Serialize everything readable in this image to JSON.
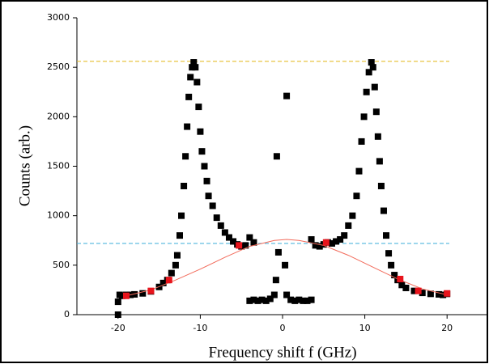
{
  "chart_data": {
    "type": "scatter",
    "xlabel": "Frequency shift f  (GHz)",
    "ylabel": "Counts (arb.)",
    "xlim": [
      -25,
      25
    ],
    "ylim": [
      0,
      3000
    ],
    "xticks": [
      -20,
      -10,
      0,
      10,
      20
    ],
    "yticks": [
      0,
      500,
      1000,
      1500,
      2000,
      2500,
      3000
    ],
    "hlines": [
      {
        "value": 2560,
        "color": "#e6bf2e"
      },
      {
        "value": 720,
        "color": "#4fb6dc"
      }
    ],
    "series": [
      {
        "style": "markers",
        "color": "#000000",
        "x": [
          -20,
          -20,
          -19.8,
          -19.5,
          -19,
          -18.5,
          -18,
          -17,
          -16,
          -15,
          -14.5,
          -14,
          -13.5,
          -13,
          -12.8,
          -12.5,
          -12.3,
          -12,
          -11.8,
          -11.6,
          -11.4,
          -11.2,
          -11,
          -10.8,
          -10.6,
          -10.4,
          -10.2,
          -10,
          -9.8,
          -9.5,
          -9.2,
          -9,
          -8.5,
          -8,
          -7.5,
          -7,
          -6.5,
          -6,
          -5.5,
          -5,
          -4.5,
          -4,
          -3.5,
          -4,
          -3.5,
          -3,
          -2.5,
          -2,
          -1.5,
          -1,
          -0.8,
          -0.5,
          -0.7,
          0.5,
          0.3,
          0.5,
          1,
          1.5,
          2,
          2.5,
          3,
          3.5,
          3.5,
          4,
          4.5,
          5,
          5.5,
          6,
          6.5,
          7,
          7.5,
          8,
          8.5,
          9,
          9.3,
          9.6,
          9.9,
          10.2,
          10.5,
          10.8,
          11,
          11.2,
          11.4,
          11.6,
          11.8,
          12,
          12.3,
          12.6,
          12.9,
          13.2,
          13.6,
          14,
          14.5,
          15,
          16,
          17,
          18,
          19,
          19.5,
          20
        ],
        "values": [
          0,
          130,
          200,
          190,
          200,
          200,
          205,
          215,
          235,
          280,
          320,
          350,
          420,
          500,
          600,
          800,
          1000,
          1300,
          1600,
          1900,
          2200,
          2400,
          2500,
          2550,
          2500,
          2350,
          2100,
          1850,
          1650,
          1500,
          1350,
          1200,
          1100,
          980,
          900,
          830,
          780,
          740,
          710,
          690,
          700,
          780,
          730,
          140,
          150,
          140,
          150,
          140,
          160,
          200,
          350,
          630,
          1600,
          2210,
          500,
          200,
          150,
          140,
          150,
          140,
          140,
          150,
          760,
          700,
          690,
          710,
          730,
          720,
          740,
          760,
          800,
          900,
          1000,
          1200,
          1450,
          1750,
          2000,
          2250,
          2450,
          2550,
          2500,
          2300,
          2050,
          1800,
          1550,
          1300,
          1050,
          800,
          620,
          500,
          400,
          350,
          300,
          270,
          240,
          220,
          210,
          205,
          200,
          210
        ]
      },
      {
        "style": "line",
        "color": "#f26b5b",
        "x": [
          -19,
          -16,
          -13,
          -10,
          -7,
          -4,
          -1,
          0.5,
          2,
          5,
          8,
          11,
          14,
          17,
          20
        ],
        "values": [
          190,
          250,
          350,
          460,
          580,
          690,
          750,
          760,
          750,
          700,
          600,
          480,
          360,
          260,
          200
        ]
      },
      {
        "style": "markers",
        "color": "#e8141c",
        "x": [
          -19,
          -16,
          -13.8,
          -5.3,
          5.3,
          14.3,
          16.5,
          20
        ],
        "values": [
          190,
          240,
          350,
          700,
          730,
          360,
          240,
          215
        ]
      }
    ]
  }
}
